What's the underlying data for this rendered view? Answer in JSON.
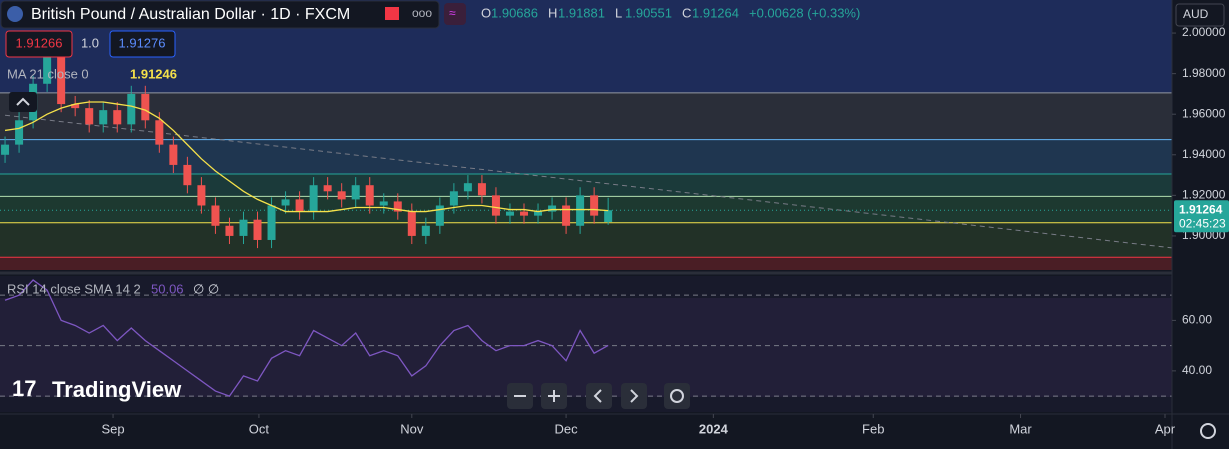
{
  "chart_data": {
    "type": "candlestick",
    "title": "British Pound / Australian Dollar · 1D · FXCM",
    "currency": "AUD",
    "countdown": "02:45:23",
    "watermark": "TradingView",
    "header": {
      "ohlc": [
        {
          "label": "O",
          "value": 1.90686
        },
        {
          "label": "H",
          "value": 1.91881
        },
        {
          "label": "L",
          "value": 1.90551
        },
        {
          "label": "C",
          "value": 1.91264
        }
      ],
      "close": 1.91264,
      "change": "+0.00628 (+0.33%)"
    },
    "buttons": {
      "sell": "1.91266",
      "qty": "1.0",
      "buy": "1.91276"
    },
    "open": [
      1.94,
      1.945,
      1.957,
      1.975,
      1.99,
      1.965,
      1.963,
      1.955,
      1.962,
      1.955,
      1.97,
      1.957,
      1.945,
      1.935,
      1.925,
      1.915,
      1.905,
      1.9,
      1.908,
      1.898,
      1.915,
      1.918,
      1.912,
      1.925,
      1.922,
      1.918,
      1.925,
      1.915,
      1.917,
      1.912,
      1.9,
      1.905,
      1.915,
      1.922,
      1.926,
      1.92,
      1.91,
      1.912,
      1.91,
      1.912,
      1.915,
      1.905,
      1.92,
      1.90686
    ],
    "high": [
      1.949,
      1.961,
      1.979,
      1.994,
      1.994,
      1.969,
      1.967,
      1.966,
      1.966,
      1.974,
      1.974,
      1.961,
      1.949,
      1.939,
      1.929,
      1.919,
      1.909,
      1.912,
      1.912,
      1.919,
      1.922,
      1.922,
      1.929,
      1.929,
      1.926,
      1.929,
      1.929,
      1.921,
      1.921,
      1.916,
      1.909,
      1.919,
      1.926,
      1.93,
      1.93,
      1.924,
      1.916,
      1.916,
      1.916,
      1.919,
      1.919,
      1.924,
      1.924,
      1.91881
    ],
    "low": [
      1.936,
      1.941,
      1.953,
      1.971,
      1.961,
      1.959,
      1.951,
      1.951,
      1.951,
      1.951,
      1.953,
      1.941,
      1.931,
      1.921,
      1.911,
      1.901,
      1.896,
      1.896,
      1.894,
      1.894,
      1.911,
      1.908,
      1.908,
      1.918,
      1.914,
      1.914,
      1.911,
      1.911,
      1.908,
      1.896,
      1.896,
      1.901,
      1.911,
      1.918,
      1.916,
      1.906,
      1.906,
      1.906,
      1.906,
      1.908,
      1.901,
      1.901,
      1.906,
      1.90551
    ],
    "close": [
      1.945,
      1.957,
      1.975,
      1.99,
      1.965,
      1.963,
      1.955,
      1.962,
      1.955,
      1.97,
      1.957,
      1.945,
      1.935,
      1.925,
      1.915,
      1.905,
      1.9,
      1.908,
      1.898,
      1.915,
      1.918,
      1.912,
      1.925,
      1.922,
      1.918,
      1.925,
      1.915,
      1.917,
      1.912,
      1.9,
      1.905,
      1.915,
      1.922,
      1.926,
      1.92,
      1.91,
      1.912,
      1.91,
      1.912,
      1.915,
      1.905,
      1.92,
      1.91,
      1.91264
    ],
    "up_color": "#26a69a",
    "down_color": "#ef5350",
    "ma": {
      "name": "MA 21 close 0",
      "color": "#f5e14a",
      "last": 1.91246,
      "values": [
        1.952,
        1.953,
        1.956,
        1.96,
        1.963,
        1.965,
        1.966,
        1.966,
        1.965,
        1.964,
        1.962,
        1.958,
        1.952,
        1.945,
        1.938,
        1.932,
        1.927,
        1.922,
        1.918,
        1.915,
        1.912,
        1.912,
        1.912,
        1.912,
        1.913,
        1.914,
        1.914,
        1.914,
        1.913,
        1.912,
        1.912,
        1.913,
        1.914,
        1.915,
        1.915,
        1.914,
        1.913,
        1.913,
        1.912,
        1.913,
        1.913,
        1.913,
        1.913,
        1.91246
      ]
    },
    "levels": [
      1.9705,
      1.9475,
      1.9305,
      1.9195,
      1.9065,
      1.8895
    ],
    "level_colors": [
      "#9598a1",
      "#64b5f6",
      "#26a69a",
      "#b2dfb0",
      "#f5e14a",
      "#f23645"
    ],
    "level_fills": [
      "#2a2e39",
      "#1f3650",
      "#1b3a3a",
      "#1d3930",
      "#223127",
      "#4a1e25"
    ],
    "trend_line": {
      "x": [
        0,
        83.2
      ],
      "y": [
        1.9595,
        1.8941
      ],
      "color": "#787b86"
    },
    "ylim": [
      1.8832,
      2.0163
    ],
    "yticks": [
      {
        "value": 2.0,
        "label": "2.00000"
      },
      {
        "value": 1.98,
        "label": "1.98000"
      },
      {
        "value": 1.96,
        "label": "1.96000"
      },
      {
        "value": 1.94,
        "label": "1.94000"
      },
      {
        "value": 1.92,
        "label": "1.92000"
      },
      {
        "value": 1.9,
        "label": "1.90000"
      }
    ],
    "xlim": [
      -0.36,
      83.2
    ],
    "xticks": [
      {
        "value": 7.7,
        "label": "Sep"
      },
      {
        "value": 18.1,
        "label": "Oct"
      },
      {
        "value": 29,
        "label": "Nov"
      },
      {
        "value": 40,
        "label": "Dec"
      },
      {
        "value": 50.5,
        "label": "2024"
      },
      {
        "value": 61.9,
        "label": "Feb"
      },
      {
        "value": 72.4,
        "label": "Mar"
      },
      {
        "value": 82.7,
        "label": "Apr"
      }
    ],
    "rsi": {
      "name": "RSI 14 close SMA 14 2",
      "color": "#7e57c2",
      "last": 50.06,
      "extra": "∅ ∅",
      "values": [
        68,
        70,
        76,
        72,
        60,
        58,
        55,
        58,
        52,
        57,
        52,
        48,
        44,
        40,
        36,
        32,
        30,
        38,
        36,
        45,
        48,
        46,
        56,
        53,
        50,
        55,
        46,
        48,
        46,
        38,
        42,
        50,
        56,
        58,
        52,
        48,
        50,
        50,
        52,
        50,
        44,
        56,
        47,
        50.06
      ],
      "ylim": [
        23.7,
        77.6
      ],
      "yticks": [
        {
          "value": 60,
          "label": "60.00"
        },
        {
          "value": 40,
          "label": "40.00"
        }
      ],
      "bands": [
        70,
        50,
        30
      ]
    }
  }
}
